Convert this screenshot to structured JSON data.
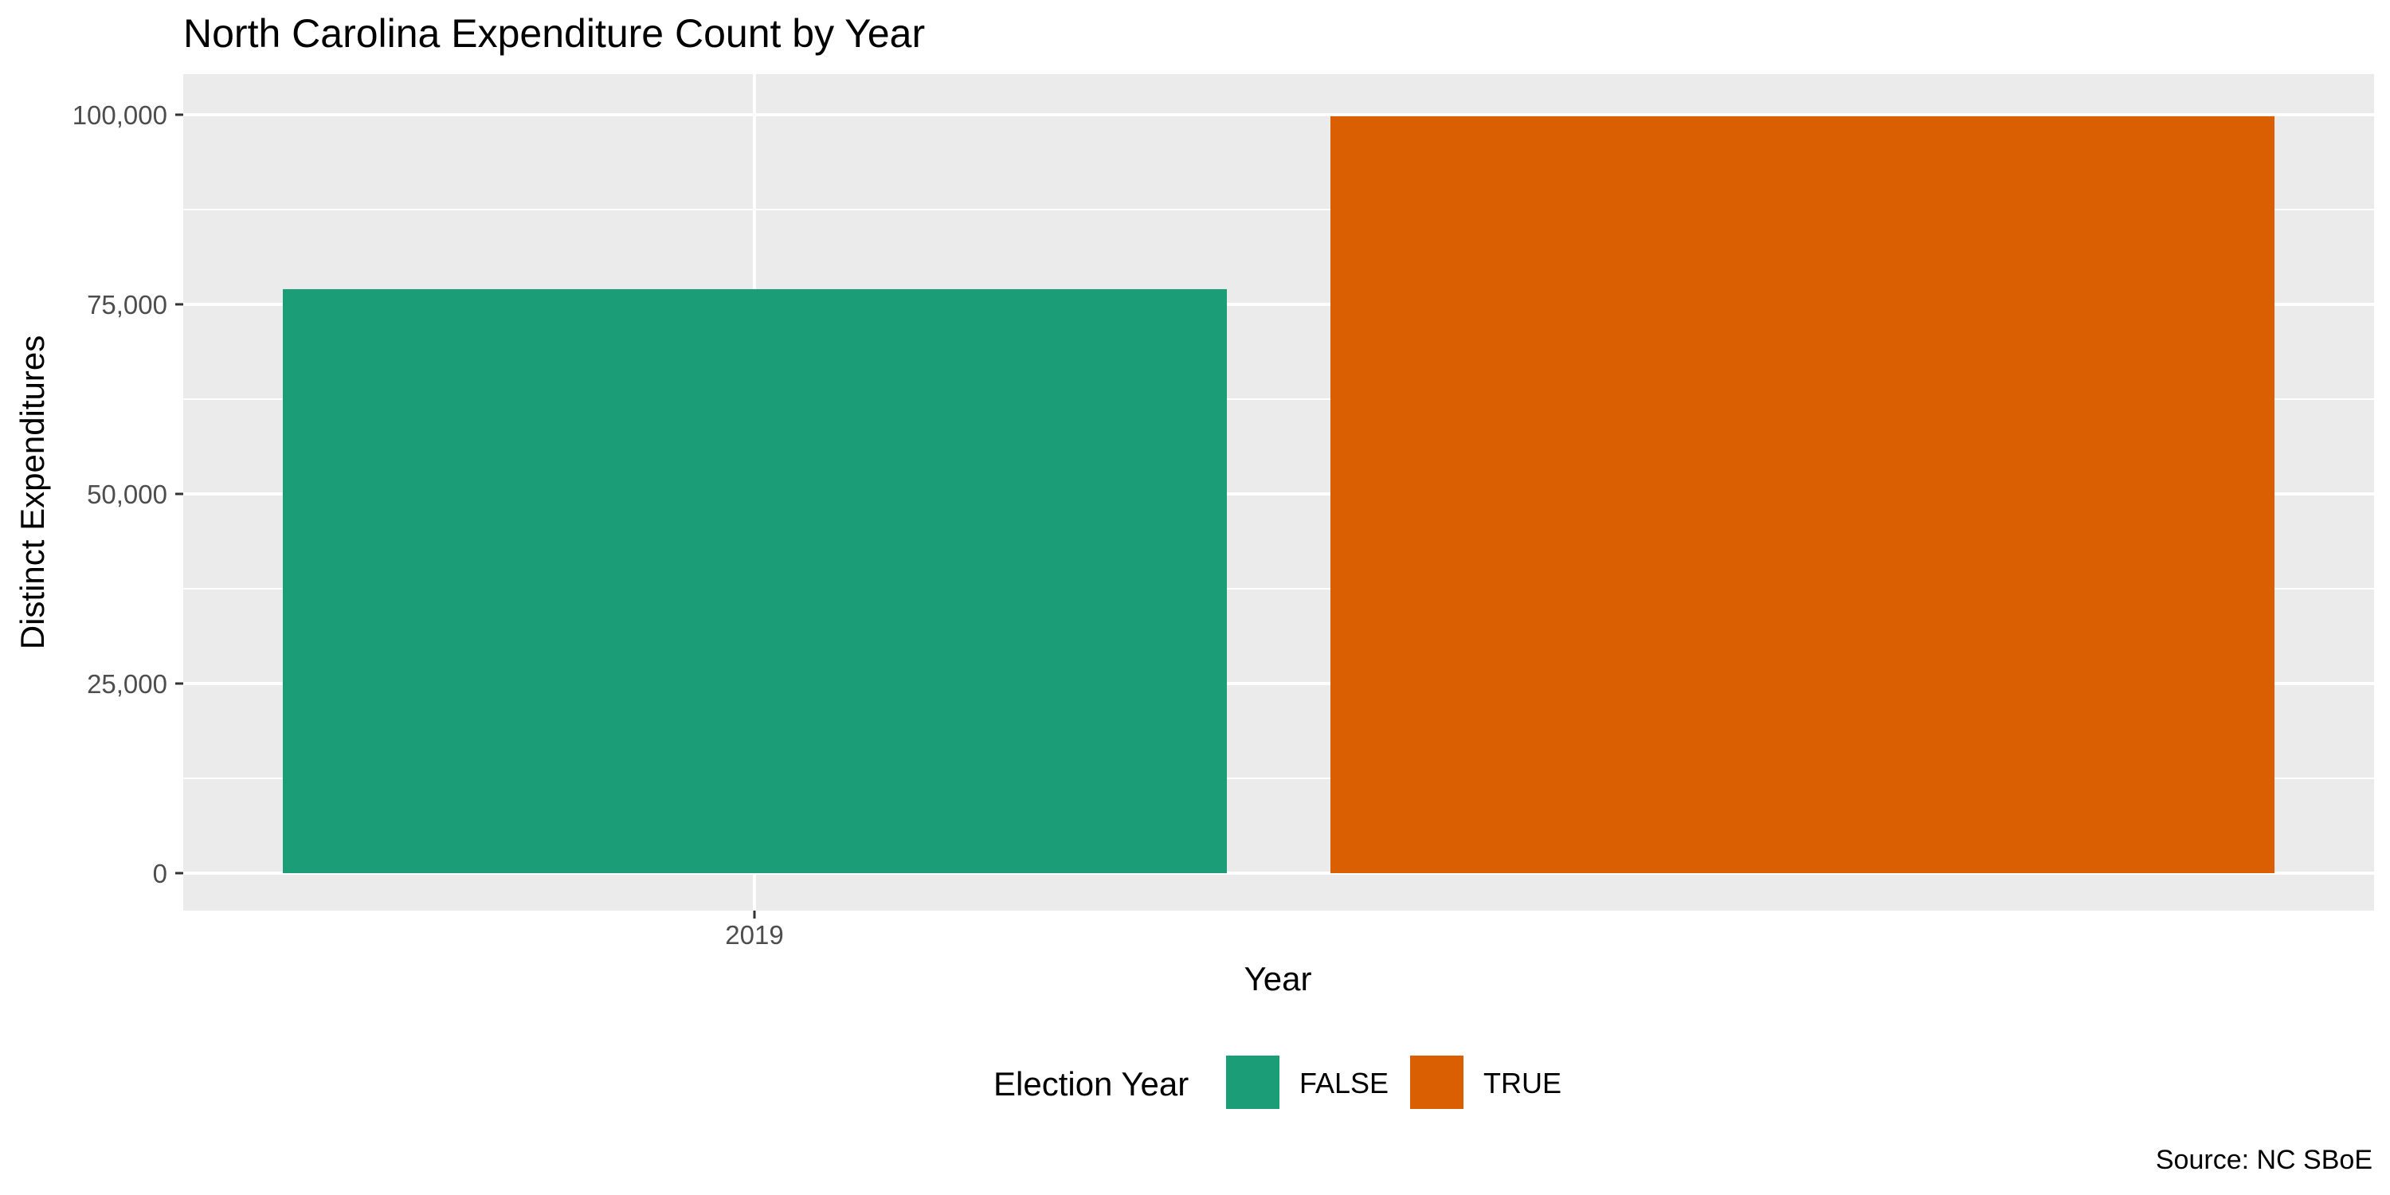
{
  "chart_data": {
    "type": "bar",
    "title": "North Carolina Expenditure Count by Year",
    "xlabel": "Year",
    "ylabel": "Distinct Expenditures",
    "caption": "Source: NC SBoE",
    "categories": [
      "2019"
    ],
    "series": [
      {
        "name": "FALSE",
        "values": [
          77000
        ],
        "color": "#1b9e77"
      },
      {
        "name": "TRUE",
        "values": [
          99800
        ],
        "color": "#d95f02"
      }
    ],
    "ylim": [
      0,
      100000
    ],
    "y_ticks": [
      0,
      25000,
      50000,
      75000,
      100000
    ],
    "y_tick_labels": [
      "0",
      "25,000",
      "50,000",
      "75,000",
      "100,000"
    ],
    "x_tick_labels": [
      "2019"
    ],
    "grid": true,
    "legend": {
      "title": "Election Year",
      "position": "bottom",
      "items": [
        "FALSE",
        "TRUE"
      ]
    },
    "panel_background": "#ebebeb",
    "grid_color": "#ffffff"
  }
}
